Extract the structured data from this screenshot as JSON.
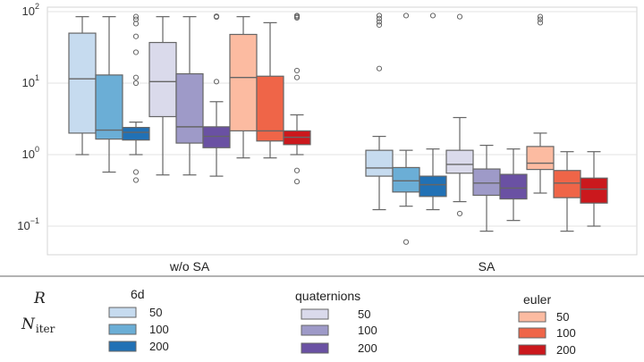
{
  "chart_data": {
    "type": "box",
    "yscale": "log",
    "ylim": [
      0.05,
      100
    ],
    "y_ticks": [
      {
        "value": 100,
        "base": "10",
        "exp": "2"
      },
      {
        "value": 10,
        "base": "10",
        "exp": "1"
      },
      {
        "value": 1,
        "base": "10",
        "exp": "0"
      },
      {
        "value": 0.1,
        "base": "10",
        "exp": "−1"
      }
    ],
    "categories": [
      "w/o SA",
      "SA"
    ],
    "grid": true,
    "legend": {
      "position": "bottom",
      "symbols": {
        "R": "R",
        "N": "N",
        "N_sub": "iter"
      },
      "groups": [
        {
          "title": "6d",
          "items": [
            {
              "label": "50",
              "color": "#c6dbef"
            },
            {
              "label": "100",
              "color": "#6baed6"
            },
            {
              "label": "200",
              "color": "#2171b5"
            }
          ]
        },
        {
          "title": "quaternions",
          "items": [
            {
              "label": "50",
              "color": "#dadaeb"
            },
            {
              "label": "100",
              "color": "#9e9ac8"
            },
            {
              "label": "200",
              "color": "#6a51a3"
            }
          ]
        },
        {
          "title": "euler",
          "items": [
            {
              "label": "50",
              "color": "#fcbba1"
            },
            {
              "label": "100",
              "color": "#ef6548"
            },
            {
              "label": "200",
              "color": "#cb181d"
            }
          ]
        }
      ]
    },
    "series": [
      {
        "name": "6d 50",
        "color": "#c6dbef",
        "boxes": [
          {
            "category": "w/o SA",
            "whislo": 1.0,
            "q1": 2.0,
            "med": 11.5,
            "q3": 50,
            "whishi": 85,
            "fliers": []
          },
          {
            "category": "SA",
            "whislo": 0.17,
            "q1": 0.5,
            "med": 0.65,
            "q3": 1.15,
            "whishi": 1.8,
            "fliers": [
              16,
              65,
              72,
              80,
              88
            ]
          }
        ]
      },
      {
        "name": "6d 100",
        "color": "#6baed6",
        "boxes": [
          {
            "category": "w/o SA",
            "whislo": 0.57,
            "q1": 1.65,
            "med": 2.2,
            "q3": 13,
            "whishi": 85,
            "fliers": []
          },
          {
            "category": "SA",
            "whislo": 0.19,
            "q1": 0.3,
            "med": 0.43,
            "q3": 0.66,
            "whishi": 1.15,
            "fliers": [
              0.06,
              88
            ]
          }
        ]
      },
      {
        "name": "6d 200",
        "color": "#2171b5",
        "boxes": [
          {
            "category": "w/o SA",
            "whislo": 1.0,
            "q1": 1.6,
            "med": 2.05,
            "q3": 2.4,
            "whishi": 2.85,
            "fliers": [
              0.44,
              0.57,
              10,
              12,
              27,
              45,
              68,
              78,
              85
            ]
          },
          {
            "category": "SA",
            "whislo": 0.17,
            "q1": 0.26,
            "med": 0.38,
            "q3": 0.5,
            "whishi": 1.2,
            "fliers": [
              88
            ]
          }
        ]
      },
      {
        "name": "quaternions 50",
        "color": "#dadaeb",
        "boxes": [
          {
            "category": "w/o SA",
            "whislo": 0.52,
            "q1": 3.4,
            "med": 10.5,
            "q3": 37,
            "whishi": 85,
            "fliers": []
          },
          {
            "category": "SA",
            "whislo": 0.22,
            "q1": 0.55,
            "med": 0.73,
            "q3": 1.15,
            "whishi": 3.3,
            "fliers": [
              0.15,
              85
            ]
          }
        ]
      },
      {
        "name": "quaternions 100",
        "color": "#9e9ac8",
        "boxes": [
          {
            "category": "w/o SA",
            "whislo": 0.52,
            "q1": 1.45,
            "med": 2.45,
            "q3": 13.5,
            "whishi": 85,
            "fliers": []
          },
          {
            "category": "SA",
            "whislo": 0.085,
            "q1": 0.27,
            "med": 0.4,
            "q3": 0.63,
            "whishi": 1.35,
            "fliers": []
          }
        ]
      },
      {
        "name": "quaternions 200",
        "color": "#6a51a3",
        "boxes": [
          {
            "category": "w/o SA",
            "whislo": 0.5,
            "q1": 1.25,
            "med": 1.8,
            "q3": 2.45,
            "whishi": 5.5,
            "fliers": [
              10.5,
              84,
              86
            ]
          },
          {
            "category": "SA",
            "whislo": 0.12,
            "q1": 0.24,
            "med": 0.34,
            "q3": 0.53,
            "whishi": 1.2,
            "fliers": []
          }
        ]
      },
      {
        "name": "euler 50",
        "color": "#fcbba1",
        "boxes": [
          {
            "category": "w/o SA",
            "whislo": 0.9,
            "q1": 2.15,
            "med": 12,
            "q3": 48,
            "whishi": 85,
            "fliers": []
          },
          {
            "category": "SA",
            "whislo": 0.29,
            "q1": 0.62,
            "med": 0.76,
            "q3": 1.3,
            "whishi": 2.0,
            "fliers": [
              70,
              78,
              85
            ]
          }
        ]
      },
      {
        "name": "euler 100",
        "color": "#ef6548",
        "boxes": [
          {
            "category": "w/o SA",
            "whislo": 0.9,
            "q1": 1.55,
            "med": 2.15,
            "q3": 12.5,
            "whishi": 70,
            "fliers": []
          },
          {
            "category": "SA",
            "whislo": 0.085,
            "q1": 0.25,
            "med": 0.4,
            "q3": 0.6,
            "whishi": 1.1,
            "fliers": []
          }
        ]
      },
      {
        "name": "euler 200",
        "color": "#cb181d",
        "boxes": [
          {
            "category": "w/o SA",
            "whislo": 1.0,
            "q1": 1.38,
            "med": 1.75,
            "q3": 2.15,
            "whishi": 3.6,
            "fliers": [
              0.42,
              0.6,
              12,
              15,
              82,
              85,
              88
            ]
          },
          {
            "category": "SA",
            "whislo": 0.1,
            "q1": 0.21,
            "med": 0.33,
            "q3": 0.47,
            "whishi": 1.1,
            "fliers": []
          }
        ]
      }
    ]
  }
}
